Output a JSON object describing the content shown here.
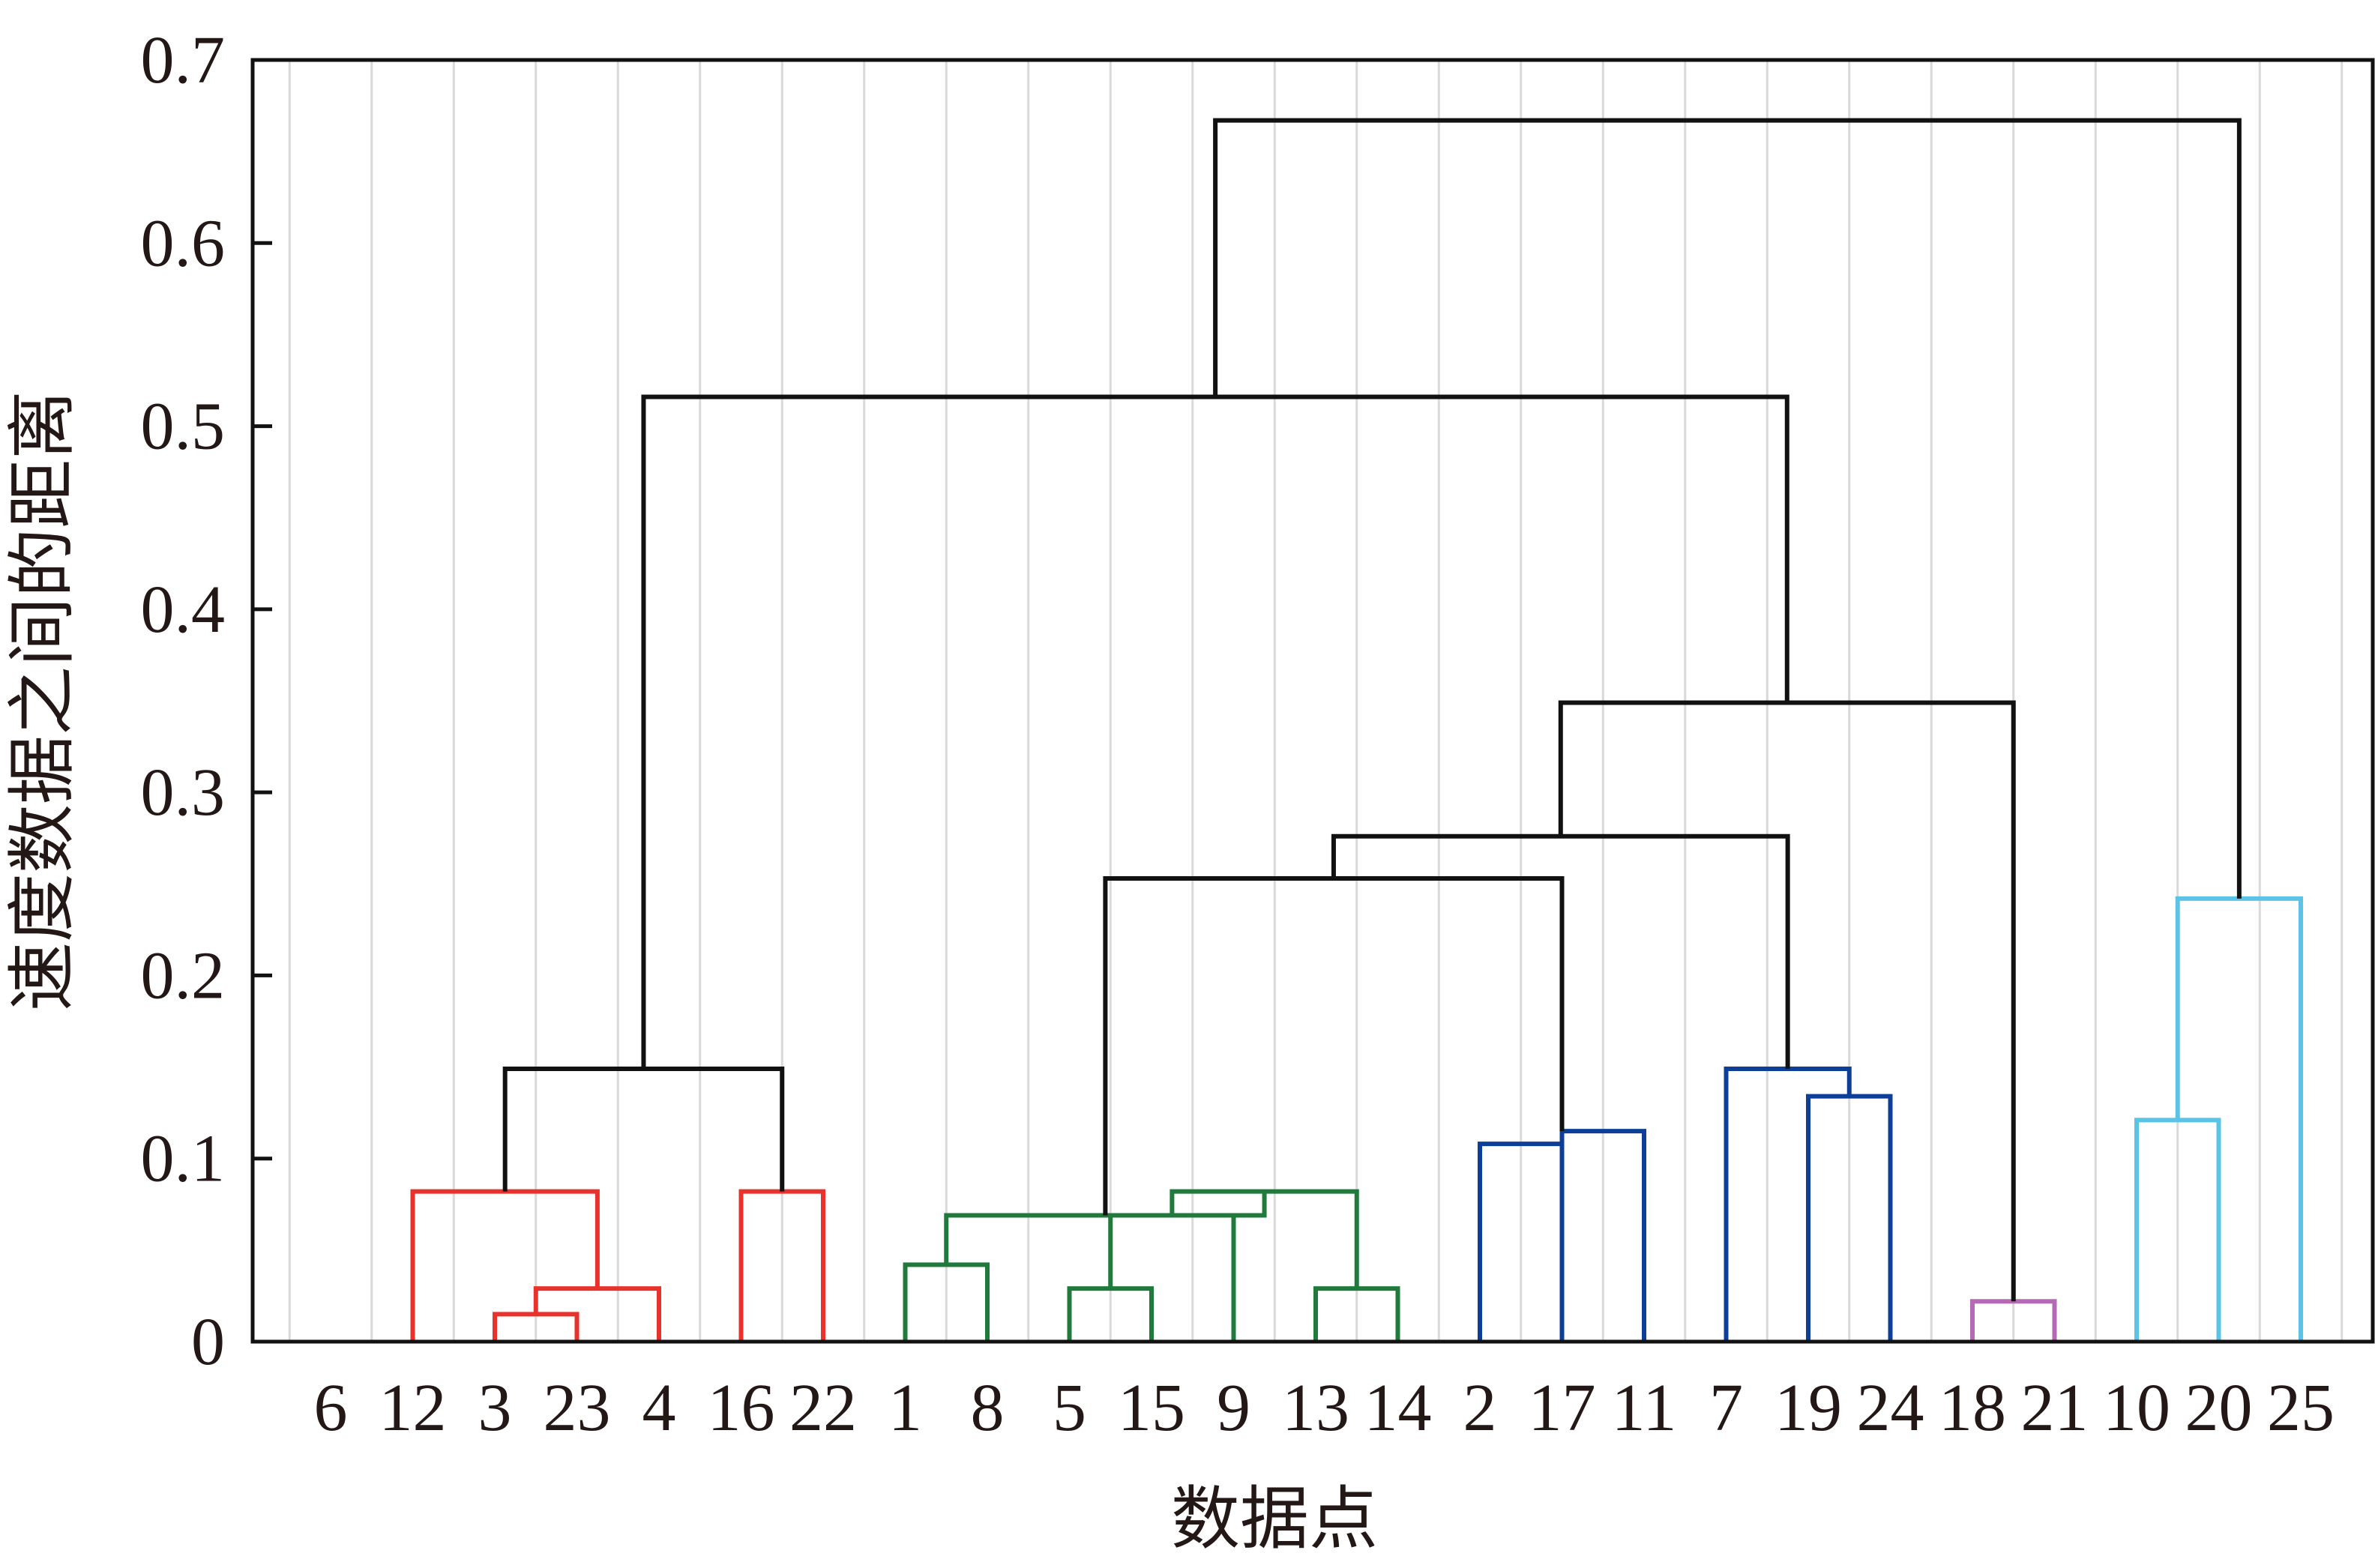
{
  "chart_data": {
    "type": "dendrogram",
    "title": "",
    "xlabel": "数据点",
    "ylabel": "速度数据之间的距离",
    "ylim": [
      0,
      0.7
    ],
    "yticks": [
      "0",
      "0.1",
      "0.2",
      "0.3",
      "0.4",
      "0.5",
      "0.6",
      "0.7"
    ],
    "leaves": [
      "6",
      "12",
      "3",
      "23",
      "4",
      "16",
      "22",
      "1",
      "8",
      "5",
      "15",
      "9",
      "13",
      "14",
      "2",
      "17",
      "11",
      "7",
      "19",
      "24",
      "18",
      "21",
      "10",
      "20",
      "25"
    ],
    "grid": "vertical",
    "colors": {
      "red": "#e8322b",
      "green": "#1f7a3c",
      "blue": "#0d3f99",
      "purple": "#b46ab4",
      "cyan": "#5bc4e6",
      "black": "#111111",
      "grid": "#d9d9d9"
    },
    "merges": [
      {
        "a": "3",
        "b": "23",
        "height": 0.015,
        "color": "red"
      },
      {
        "a": "3+23",
        "b": "4",
        "height": 0.029,
        "color": "red"
      },
      {
        "a": "12",
        "b": "3+23+4",
        "height": 0.082,
        "color": "red"
      },
      {
        "a": "16",
        "b": "22",
        "height": 0.082,
        "color": "red"
      },
      {
        "a": "12+3+23+4",
        "b": "16+22",
        "height": 0.149,
        "color": "black"
      },
      {
        "a": "1",
        "b": "8",
        "height": 0.042,
        "color": "green"
      },
      {
        "a": "5",
        "b": "15",
        "height": 0.029,
        "color": "green"
      },
      {
        "a": "5+15",
        "b": "9",
        "height": 0.069,
        "color": "green"
      },
      {
        "a": "13",
        "b": "14",
        "height": 0.029,
        "color": "green"
      },
      {
        "a": "5+15+9",
        "b": "13+14",
        "height": 0.082,
        "color": "green"
      },
      {
        "a": "1+8",
        "b": "5+15+9+13+14",
        "height": 0.069,
        "color": "green"
      },
      {
        "a": "2",
        "b": "17",
        "height": 0.108,
        "color": "blue"
      },
      {
        "a": "17",
        "b": "11",
        "height": 0.115,
        "color": "blue"
      },
      {
        "a": "green-group",
        "b": "2+17+11",
        "height": 0.253,
        "color": "black"
      },
      {
        "a": "19",
        "b": "24",
        "height": 0.134,
        "color": "blue"
      },
      {
        "a": "7",
        "b": "19+24",
        "height": 0.149,
        "color": "blue"
      },
      {
        "a": "1..11",
        "b": "7+19+24",
        "height": 0.276,
        "color": "black"
      },
      {
        "a": "18",
        "b": "21",
        "height": 0.022,
        "color": "purple"
      },
      {
        "a": "1..24",
        "b": "18+21",
        "height": 0.349,
        "color": "black"
      },
      {
        "a": "red-group",
        "b": "1..21",
        "height": 0.516,
        "color": "black"
      },
      {
        "a": "10",
        "b": "20",
        "height": 0.121,
        "color": "cyan"
      },
      {
        "a": "10+20",
        "b": "25",
        "height": 0.242,
        "color": "cyan"
      },
      {
        "a": "6..21",
        "b": "10+20+25",
        "height": 0.667,
        "color": "black"
      }
    ]
  }
}
